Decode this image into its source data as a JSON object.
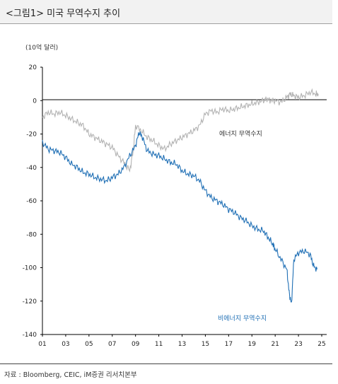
{
  "header": {
    "title": "<그림1> 미국 무역수지 추이",
    "unit": "(10억 달러)",
    "source": "자료 : Bloomberg, CEIC, iM증권 리서치본부"
  },
  "colors": {
    "energy": "#b3b3b3",
    "nonenergy": "#1f6fb5",
    "axis": "#000000"
  },
  "chart_data": {
    "type": "line",
    "ylim": [
      -140,
      20
    ],
    "yticks": [
      "20",
      "0",
      "-20",
      "-40",
      "-60",
      "-80",
      "-100",
      "-120",
      "-140"
    ],
    "xlim": [
      2001,
      2025
    ],
    "xticks": [
      "01",
      "03",
      "05",
      "07",
      "09",
      "11",
      "13",
      "15",
      "17",
      "19",
      "21",
      "23",
      "25"
    ],
    "grid": false,
    "series": [
      {
        "name": "에너지 무역수지",
        "x": [
          2001.0,
          2001.5,
          2002.0,
          2002.5,
          2003.0,
          2003.5,
          2004.0,
          2004.5,
          2005.0,
          2005.5,
          2006.0,
          2006.5,
          2007.0,
          2007.5,
          2008.0,
          2008.5,
          2008.8,
          2009.0,
          2009.5,
          2010.0,
          2010.5,
          2011.0,
          2011.5,
          2012.0,
          2012.5,
          2013.0,
          2013.5,
          2014.0,
          2014.5,
          2015.0,
          2015.5,
          2016.0,
          2016.5,
          2017.0,
          2017.5,
          2018.0,
          2018.5,
          2019.0,
          2019.5,
          2020.0,
          2020.3,
          2020.6,
          2021.0,
          2021.5,
          2022.0,
          2022.3,
          2022.6,
          2023.0,
          2023.5,
          2024.0,
          2024.5,
          2024.7
        ],
        "values": [
          -10,
          -7,
          -8,
          -7,
          -9,
          -11,
          -13,
          -15,
          -20,
          -22,
          -24,
          -26,
          -28,
          -33,
          -37,
          -42,
          -30,
          -15,
          -18,
          -22,
          -24,
          -27,
          -29,
          -26,
          -24,
          -22,
          -20,
          -18,
          -15,
          -8,
          -6,
          -7,
          -5,
          -6,
          -5,
          -4,
          -3,
          -2,
          -1,
          0,
          1,
          0,
          0,
          -1,
          2,
          4,
          3,
          2,
          3,
          5,
          4,
          4
        ]
      },
      {
        "name": "비에너지 무역수지",
        "x": [
          2001.0,
          2001.5,
          2002.0,
          2002.5,
          2003.0,
          2003.5,
          2004.0,
          2004.5,
          2005.0,
          2005.5,
          2006.0,
          2006.5,
          2007.0,
          2007.5,
          2008.0,
          2008.5,
          2009.0,
          2009.3,
          2009.6,
          2010.0,
          2010.5,
          2011.0,
          2011.5,
          2012.0,
          2012.5,
          2013.0,
          2013.5,
          2014.0,
          2014.5,
          2015.0,
          2015.5,
          2016.0,
          2016.5,
          2017.0,
          2017.5,
          2018.0,
          2018.5,
          2019.0,
          2019.5,
          2020.0,
          2020.4,
          2020.8,
          2021.0,
          2021.5,
          2022.0,
          2022.2,
          2022.4,
          2022.6,
          2023.0,
          2023.5,
          2024.0,
          2024.3,
          2024.6
        ],
        "values": [
          -25,
          -29,
          -30,
          -31,
          -34,
          -38,
          -40,
          -43,
          -44,
          -46,
          -47,
          -48,
          -46,
          -44,
          -40,
          -33,
          -27,
          -19,
          -22,
          -30,
          -32,
          -33,
          -35,
          -37,
          -38,
          -42,
          -44,
          -45,
          -48,
          -54,
          -58,
          -60,
          -62,
          -65,
          -67,
          -70,
          -72,
          -75,
          -77,
          -78,
          -82,
          -86,
          -89,
          -95,
          -101,
          -115,
          -122,
          -95,
          -91,
          -90,
          -92,
          -99,
          -101
        ]
      }
    ]
  }
}
